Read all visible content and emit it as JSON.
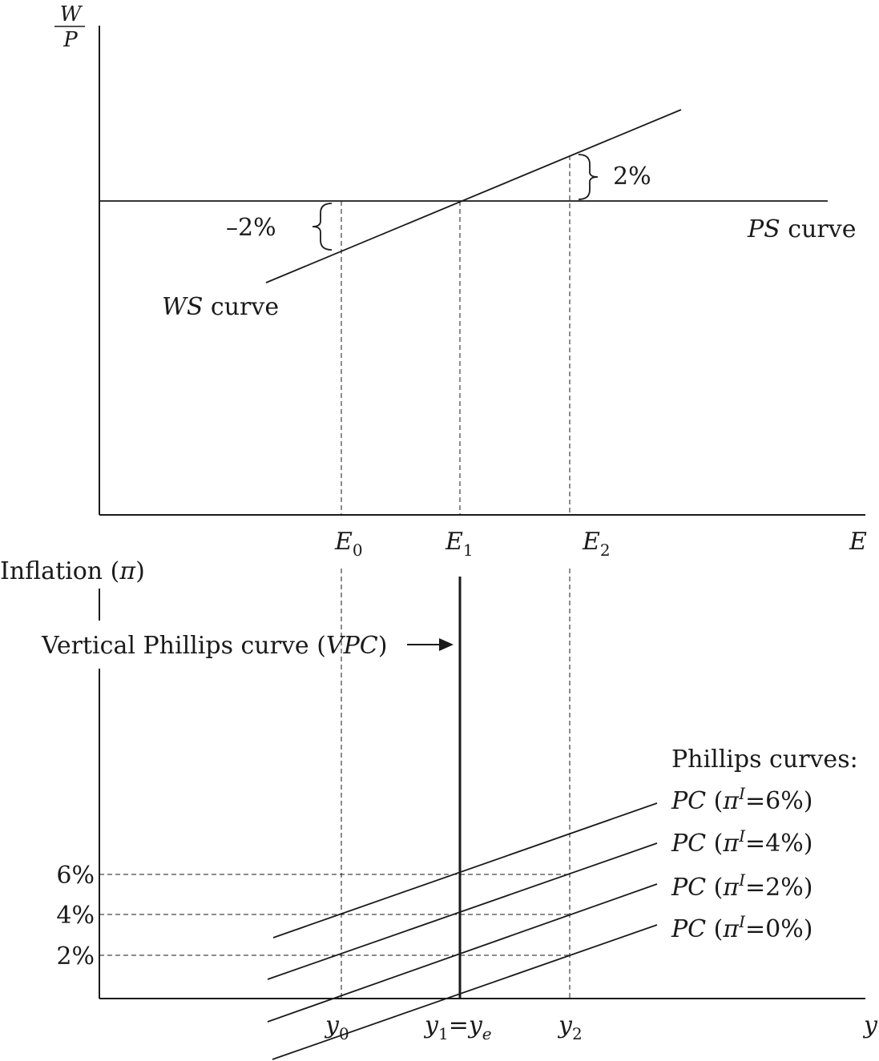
{
  "top_panel": {
    "y_axis_label_num": "W",
    "y_axis_label_den": "P",
    "x_axis_label": "E",
    "ticks": [
      {
        "id": "E0",
        "base": "E",
        "sub": "0"
      },
      {
        "id": "E1",
        "base": "E",
        "sub": "1"
      },
      {
        "id": "E2",
        "base": "E",
        "sub": "2"
      }
    ],
    "ws_curve_label": {
      "italic": "WS",
      "rest": " curve"
    },
    "ps_curve_label": {
      "italic": "PS",
      "rest": " curve"
    },
    "gap_above_label": "2%",
    "gap_below_label": "–2%"
  },
  "bottom_panel": {
    "y_axis_label": "Inflation (",
    "y_axis_symbol": "π",
    "y_axis_close": ")",
    "x_axis_label": "y",
    "vpc_label": {
      "text": "Vertical Phillips curve (",
      "italic": "VPC",
      "close": ")"
    },
    "y_ticks": [
      "6%",
      "4%",
      "2%"
    ],
    "x_ticks": [
      {
        "id": "y0",
        "base": "y",
        "sub": "0"
      },
      {
        "id": "y1",
        "base": "y",
        "sub": "1",
        "eq": "=",
        "base2": "y",
        "sub2": "e"
      },
      {
        "id": "y2",
        "base": "y",
        "sub": "2"
      }
    ],
    "legend_title": "Phillips curves:",
    "curves": [
      {
        "pc": "PC",
        "open": " (",
        "pi": "π",
        "sup": "I",
        "eq": "=",
        "value": "6%",
        "close": ")"
      },
      {
        "pc": "PC",
        "open": " (",
        "pi": "π",
        "sup": "I",
        "eq": "=",
        "value": "4%",
        "close": ")"
      },
      {
        "pc": "PC",
        "open": " (",
        "pi": "π",
        "sup": "I",
        "eq": "=",
        "value": "2%",
        "close": ")"
      },
      {
        "pc": "PC",
        "open": " (",
        "pi": "π",
        "sup": "I",
        "eq": "=",
        "value": "0%",
        "close": ")"
      }
    ]
  }
}
